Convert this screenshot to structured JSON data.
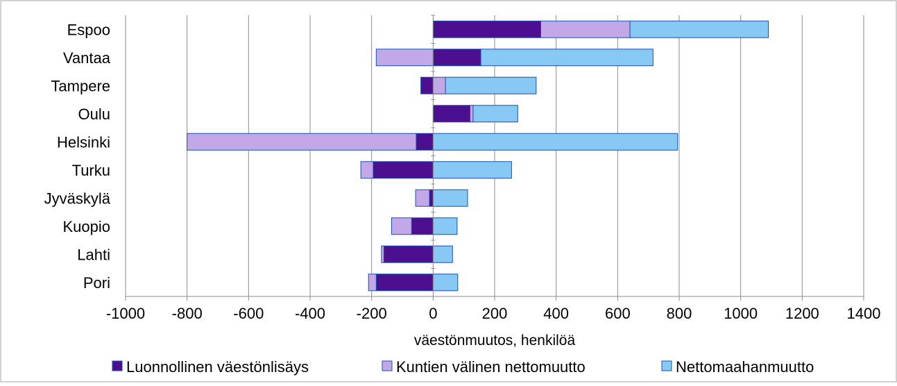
{
  "chart_data": {
    "type": "bar",
    "orientation": "horizontal",
    "stacked": "diverging",
    "categories": [
      "Espoo",
      "Vantaa",
      "Tampere",
      "Oulu",
      "Helsinki",
      "Turku",
      "Jyväskylä",
      "Kuopio",
      "Lahti",
      "Pori"
    ],
    "series": [
      {
        "name": "Luonnollinen väestönlisäys",
        "color": "#4b0f8f",
        "values": [
          350,
          155,
          -40,
          120,
          -55,
          -195,
          -12,
          -70,
          -160,
          -185
        ]
      },
      {
        "name": "Kuntien välinen nettomuutto",
        "color": "#c2a8e6",
        "values": [
          290,
          -185,
          40,
          10,
          -745,
          -40,
          -45,
          -65,
          -8,
          -25
        ]
      },
      {
        "name": "Nettomaahanmuutto",
        "color": "#88c8f5",
        "values": [
          450,
          560,
          295,
          145,
          795,
          255,
          112,
          78,
          63,
          80
        ]
      }
    ],
    "xlabel": "väestönmuutos,  henkilöä",
    "ylabel": "",
    "title": "",
    "xlim": [
      -1000,
      1400
    ],
    "xticks": [
      "-1000",
      "-800",
      "-600",
      "-400",
      "-200",
      "0",
      "200",
      "400",
      "600",
      "800",
      "1000",
      "1200",
      "1400"
    ],
    "grid": "vertical",
    "legend": "bottom"
  }
}
